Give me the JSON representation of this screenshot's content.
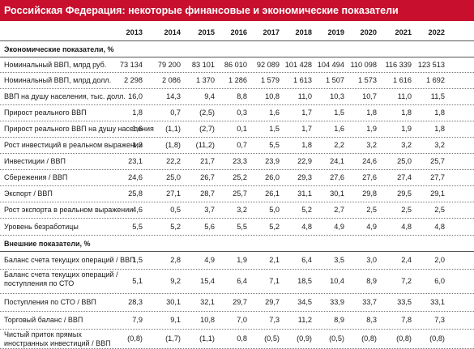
{
  "title": "Российская Федерация: некоторые финансовые и экономические показатели",
  "years": [
    "2013",
    "2014",
    "2015",
    "2016",
    "2017",
    "2018",
    "2019",
    "2020",
    "2021",
    "2022"
  ],
  "sections": [
    {
      "title": "Экономические показатели, %",
      "rows": [
        {
          "label": "Номинальный ВВП, млрд руб.",
          "values": [
            "73 134",
            "79 200",
            "83 101",
            "86 010",
            "92 089",
            "101 428",
            "104 494",
            "110 098",
            "116 339",
            "123 513"
          ]
        },
        {
          "label": "Номинальный ВВП, млрд долл.",
          "values": [
            "2 298",
            "2 086",
            "1 370",
            "1 286",
            "1 579",
            "1 613",
            "1 507",
            "1 573",
            "1 616",
            "1 692"
          ]
        },
        {
          "label": "ВВП на душу населения, тыс. долл.",
          "values": [
            "16,0",
            "14,3",
            "9,4",
            "8,8",
            "10,8",
            "11,0",
            "10,3",
            "10,7",
            "11,0",
            "11,5"
          ]
        },
        {
          "label": "Прирост реального ВВП",
          "values": [
            "1,8",
            "0,7",
            "(2,5)",
            "0,3",
            "1,6",
            "1,7",
            "1,5",
            "1,8",
            "1,8",
            "1,8"
          ]
        },
        {
          "label": "Прирост реального ВВП на душу населения",
          "values": [
            "1,6",
            "(1,1)",
            "(2,7)",
            "0,1",
            "1,5",
            "1,7",
            "1,6",
            "1,9",
            "1,9",
            "1,8"
          ]
        },
        {
          "label": "Рост инвестиций в реальном выражении",
          "values": [
            "1,3",
            "(1,8)",
            "(11,2)",
            "0,7",
            "5,5",
            "1,8",
            "2,2",
            "3,2",
            "3,2",
            "3,2"
          ]
        },
        {
          "label": "Инвестиции / ВВП",
          "values": [
            "23,1",
            "22,2",
            "21,7",
            "23,3",
            "23,9",
            "22,9",
            "24,1",
            "24,6",
            "25,0",
            "25,7"
          ]
        },
        {
          "label": "Сбережения / ВВП",
          "values": [
            "24,6",
            "25,0",
            "26,7",
            "25,2",
            "26,0",
            "29,3",
            "27,6",
            "27,6",
            "27,4",
            "27,7"
          ]
        },
        {
          "label": "Экспорт / ВВП",
          "values": [
            "25,8",
            "27,1",
            "28,7",
            "25,7",
            "26,1",
            "31,1",
            "30,1",
            "29,8",
            "29,5",
            "29,1"
          ]
        },
        {
          "label": "Рост экспорта в реальном выражении",
          "values": [
            "4,6",
            "0,5",
            "3,7",
            "3,2",
            "5,0",
            "5,2",
            "2,7",
            "2,5",
            "2,5",
            "2,5"
          ]
        },
        {
          "label": "Уровень безработицы",
          "values": [
            "5,5",
            "5,2",
            "5,6",
            "5,5",
            "5,2",
            "4,8",
            "4,9",
            "4,9",
            "4,8",
            "4,8"
          ]
        }
      ]
    },
    {
      "title": "Внешние показатели, %",
      "rows": [
        {
          "label": "Баланс счета текущих операций / ВВП",
          "values": [
            "1,5",
            "2,8",
            "4,9",
            "1,9",
            "2,1",
            "6,4",
            "3,5",
            "3,0",
            "2,4",
            "2,0"
          ]
        },
        {
          "label": "Баланс счета текущих операций / поступления по СТО",
          "values": [
            "5,1",
            "9,2",
            "15,4",
            "6,4",
            "7,1",
            "18,5",
            "10,4",
            "8,9",
            "7,2",
            "6,0"
          ]
        },
        {
          "label": "Поступления по СТО / ВВП",
          "values": [
            "28,3",
            "30,1",
            "32,1",
            "29,7",
            "29,7",
            "34,5",
            "33,9",
            "33,7",
            "33,5",
            "33,1"
          ]
        },
        {
          "label": "Торговый баланс / ВВП",
          "values": [
            "7,9",
            "9,1",
            "10,8",
            "7,0",
            "7,3",
            "11,2",
            "8,9",
            "8,3",
            "7,8",
            "7,3"
          ]
        },
        {
          "label": "Чистый приток прямых иностранных инвестиций / ВВП",
          "values": [
            "(0,8)",
            "(1,7)",
            "(1,1)",
            "0,8",
            "(0,5)",
            "(0,9)",
            "(0,5)",
            "(0,8)",
            "(0,8)",
            "(0,8)"
          ]
        }
      ]
    }
  ]
}
